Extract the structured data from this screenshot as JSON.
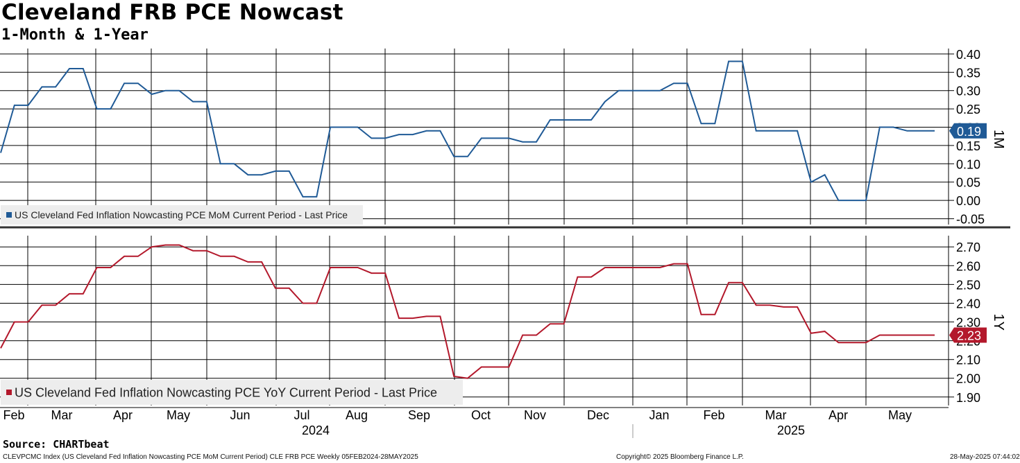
{
  "header": {
    "title": "Cleveland FRB PCE Nowcast",
    "subtitle": "1-Month & 1-Year"
  },
  "footer": {
    "source": "Source: CHARTbeat",
    "index_desc": "CLEVPCMC Index (US Cleveland Fed Inflation Nowcasting PCE MoM Current Period) CLE FRB PCE  Weekly 05FEB2024-28MAY2025",
    "copyright": "Copyright© 2025 Bloomberg Finance L.P.",
    "timestamp": "28-May-2025 07:44:02"
  },
  "colors": {
    "mom_line": "#1f5a96",
    "yoy_line": "#b3182b",
    "grid": "#000000"
  },
  "chart_data": [
    {
      "type": "line",
      "panel": "top",
      "panel_label": "1M",
      "legend": "US Cleveland Fed Inflation Nowcasting PCE MoM Current Period - Last Price",
      "last_value_label": "0.19",
      "y_ticks": [
        0.4,
        0.35,
        0.3,
        0.25,
        0.2,
        0.15,
        0.1,
        0.05,
        0.0,
        -0.05
      ],
      "y_tick_labels": [
        "0.40",
        "0.35",
        "0.30",
        "0.25",
        "0.20",
        "0.15",
        "0.10",
        "0.05",
        "0.00",
        "-0.05"
      ],
      "ylim": [
        -0.066,
        0.415
      ],
      "values": [
        0.13,
        0.26,
        0.26,
        0.31,
        0.31,
        0.36,
        0.36,
        0.25,
        0.25,
        0.32,
        0.32,
        0.29,
        0.3,
        0.3,
        0.27,
        0.27,
        0.1,
        0.1,
        0.07,
        0.07,
        0.08,
        0.08,
        0.01,
        0.01,
        0.2,
        0.2,
        0.2,
        0.17,
        0.17,
        0.18,
        0.18,
        0.19,
        0.19,
        0.12,
        0.12,
        0.17,
        0.17,
        0.17,
        0.16,
        0.16,
        0.22,
        0.22,
        0.22,
        0.22,
        0.27,
        0.3,
        0.3,
        0.3,
        0.3,
        0.32,
        0.32,
        0.21,
        0.21,
        0.38,
        0.38,
        0.19,
        0.19,
        0.19,
        0.19,
        0.05,
        0.07,
        0.0,
        0.0,
        0.0,
        0.2,
        0.2,
        0.19,
        0.19,
        0.19
      ],
      "color": "#1f5a96"
    },
    {
      "type": "line",
      "panel": "bottom",
      "panel_label": "1Y",
      "legend": "US Cleveland Fed Inflation Nowcasting PCE YoY Current Period - Last Price",
      "last_value_label": "2.23",
      "y_ticks": [
        2.7,
        2.6,
        2.5,
        2.4,
        2.3,
        2.2,
        2.1,
        2.0,
        1.9
      ],
      "y_tick_labels": [
        "2.70",
        "2.60",
        "2.50",
        "2.40",
        "2.30",
        "2.20",
        "2.10",
        "2.00",
        "1.90"
      ],
      "ylim": [
        1.855,
        2.76
      ],
      "values": [
        2.16,
        2.3,
        2.3,
        2.39,
        2.39,
        2.45,
        2.45,
        2.59,
        2.59,
        2.65,
        2.65,
        2.7,
        2.71,
        2.71,
        2.68,
        2.68,
        2.65,
        2.65,
        2.62,
        2.62,
        2.48,
        2.48,
        2.4,
        2.4,
        2.59,
        2.59,
        2.59,
        2.56,
        2.56,
        2.32,
        2.32,
        2.33,
        2.33,
        2.01,
        2.0,
        2.06,
        2.06,
        2.06,
        2.23,
        2.23,
        2.29,
        2.29,
        2.54,
        2.54,
        2.59,
        2.59,
        2.59,
        2.59,
        2.59,
        2.61,
        2.61,
        2.34,
        2.34,
        2.51,
        2.51,
        2.39,
        2.39,
        2.38,
        2.38,
        2.24,
        2.25,
        2.19,
        2.19,
        2.19,
        2.23,
        2.23,
        2.23,
        2.23,
        2.23
      ],
      "color": "#b3182b"
    }
  ],
  "x_axis": {
    "month_labels": [
      "Feb",
      "Mar",
      "Apr",
      "May",
      "Jun",
      "Jul",
      "Aug",
      "Sep",
      "Oct",
      "Nov",
      "Dec",
      "Jan",
      "Feb",
      "Mar",
      "Apr",
      "May"
    ],
    "year_labels": [
      "2024",
      "2025"
    ]
  }
}
